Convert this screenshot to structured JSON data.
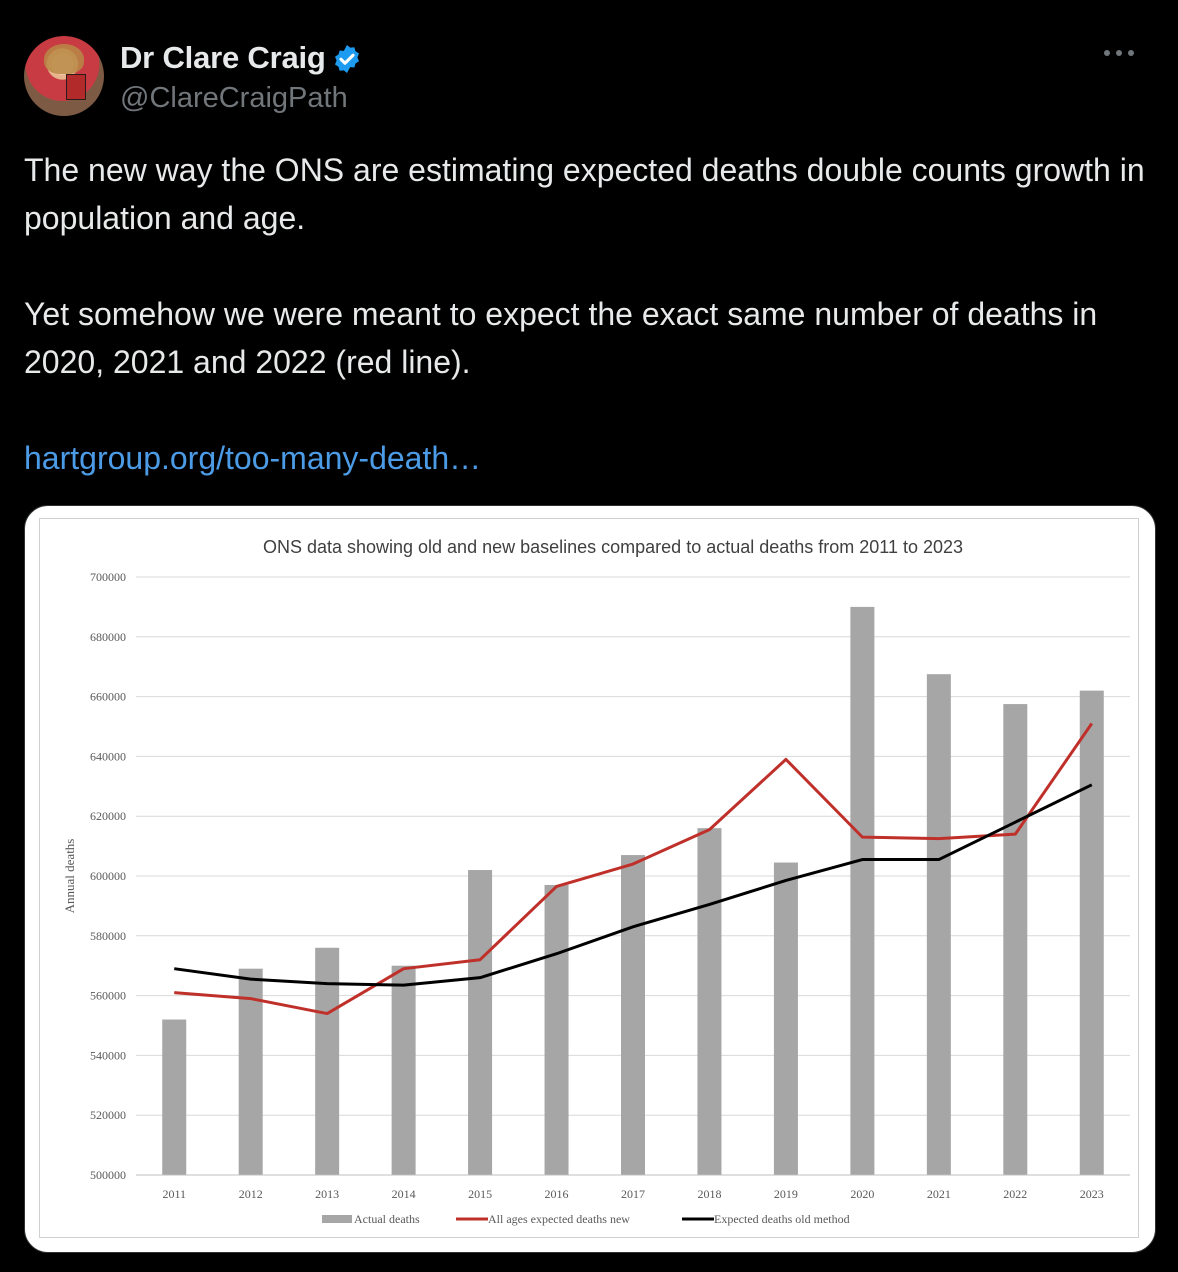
{
  "tweet": {
    "author_name": "Dr Clare Craig",
    "author_handle": "@ClareCraigPath",
    "paragraph_1": "The new way the ONS are estimating expected deaths double counts growth in population and age.",
    "paragraph_2": "Yet somehow we were meant to expect the exact same number of deaths in 2020, 2021 and 2022 (red line).",
    "link_text": "hartgroup.org/too-many-death…"
  },
  "icons": {
    "verified": "verified-badge-icon",
    "more": "more-options-icon"
  },
  "colors": {
    "background": "#000000",
    "text": "#e7e9ea",
    "secondary_text": "#71767b",
    "link": "#4c9be6",
    "verified": "#1d9bf0"
  },
  "chart_data": {
    "type": "bar",
    "title": "ONS data showing old and new baselines compared to actual deaths from 2011 to 2023",
    "xlabel": "",
    "ylabel": "Annual deaths",
    "ylim": [
      500000,
      700000
    ],
    "yticks": [
      "500000",
      "520000",
      "540000",
      "560000",
      "580000",
      "600000",
      "620000",
      "640000",
      "660000",
      "680000",
      "700000"
    ],
    "categories": [
      "2011",
      "2012",
      "2013",
      "2014",
      "2015",
      "2016",
      "2017",
      "2018",
      "2019",
      "2020",
      "2021",
      "2022",
      "2023"
    ],
    "grid": true,
    "legend_position": "bottom",
    "series": [
      {
        "name": "Actual deaths",
        "type": "bar",
        "color": "#a6a6a6",
        "values": [
          552000,
          569000,
          576000,
          570000,
          602000,
          597000,
          607000,
          616000,
          604500,
          690000,
          667500,
          657500,
          662000
        ]
      },
      {
        "name": "All ages expected deaths new",
        "type": "line",
        "color": "#c0302a",
        "values": [
          561000,
          559000,
          554000,
          569000,
          572000,
          596500,
          604000,
          615500,
          639000,
          613000,
          612500,
          614000,
          651000
        ]
      },
      {
        "name": "Expected deaths old method",
        "type": "line",
        "color": "#000000",
        "values": [
          569000,
          565500,
          564000,
          563500,
          566000,
          574000,
          583000,
          590500,
          598500,
          605500,
          605500,
          618000,
          630500
        ]
      }
    ]
  }
}
